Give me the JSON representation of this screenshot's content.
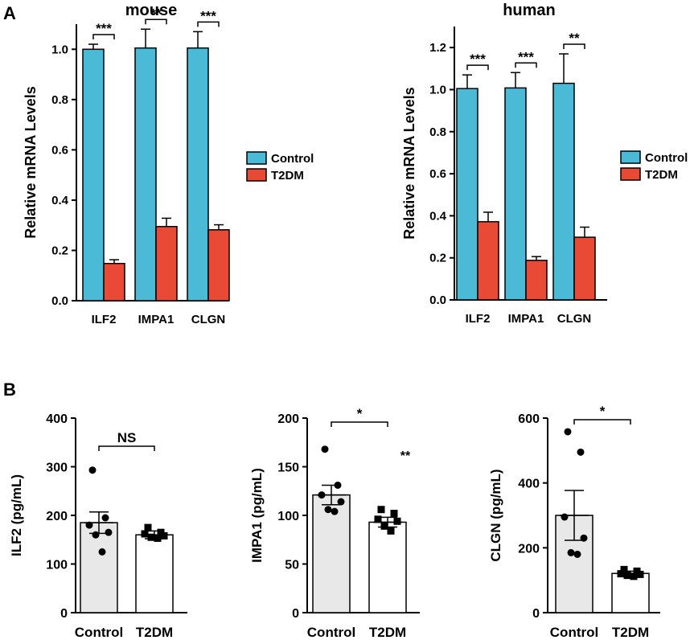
{
  "panel_labels": [
    "A",
    "B"
  ],
  "colors": {
    "control": "#4bbad6",
    "t2dm": "#e84a36",
    "ctrl_bar": "#e8e8e8",
    "t2dm_bar": "#ffffff",
    "ink": "#000000"
  },
  "chart_data": [
    {
      "id": "mouse",
      "type": "bar",
      "title": "mouse",
      "ylabel": "Relative mRNA Levels",
      "xlabel": "",
      "categories": [
        "ILF2",
        "IMPA1",
        "CLGN"
      ],
      "ylim": [
        0,
        1.1
      ],
      "yticks": [
        "0.0",
        "0.2",
        "0.4",
        "0.6",
        "0.8",
        "1.0"
      ],
      "series": [
        {
          "name": "Control",
          "values": [
            1.0,
            1.005,
            1.005
          ],
          "errors": [
            0.02,
            0.075,
            0.065
          ]
        },
        {
          "name": "T2DM",
          "values": [
            0.148,
            0.295,
            0.282
          ],
          "errors": [
            0.015,
            0.033,
            0.02
          ]
        }
      ],
      "significance": [
        "***",
        "**",
        "***"
      ],
      "legend": [
        "Control",
        "T2DM"
      ]
    },
    {
      "id": "human",
      "type": "bar",
      "title": "human",
      "ylabel": "Relative mRNA Levels",
      "xlabel": "",
      "categories": [
        "ILF2",
        "IMPA1",
        "CLGN"
      ],
      "ylim": [
        0,
        1.3
      ],
      "yticks": [
        "0.0",
        "0.2",
        "0.4",
        "0.6",
        "0.8",
        "1.0",
        "1.2"
      ],
      "series": [
        {
          "name": "Control",
          "values": [
            1.005,
            1.008,
            1.03
          ],
          "errors": [
            0.065,
            0.073,
            0.14
          ]
        },
        {
          "name": "T2DM",
          "values": [
            0.372,
            0.188,
            0.298
          ],
          "errors": [
            0.045,
            0.018,
            0.048
          ]
        }
      ],
      "significance": [
        "***",
        "***",
        "**"
      ],
      "legend": [
        "Control",
        "T2DM"
      ]
    },
    {
      "id": "ilf2",
      "type": "bar",
      "ylabel": "ILF2 (pg/mL)",
      "categories": [
        "Control",
        "T2DM"
      ],
      "ylim": [
        0,
        400
      ],
      "yticks": [
        "0",
        "100",
        "200",
        "300",
        "400"
      ],
      "values": [
        185,
        160
      ],
      "errors": [
        22,
        8
      ],
      "points": [
        [
          293,
          195,
          180,
          165,
          160,
          125
        ],
        [
          175,
          165,
          162,
          158,
          155,
          153
        ]
      ],
      "comparison": "NS",
      "extra_annotation": ""
    },
    {
      "id": "impa1",
      "type": "bar",
      "ylabel": "IMPA1 (pg/mL)",
      "categories": [
        "Control",
        "T2DM"
      ],
      "ylim": [
        0,
        200
      ],
      "yticks": [
        "0",
        "50",
        "100",
        "150",
        "200"
      ],
      "values": [
        121,
        93
      ],
      "errors": [
        10,
        5
      ],
      "points": [
        [
          168,
          131,
          121,
          114,
          106,
          104
        ],
        [
          106,
          102,
          96,
          94,
          89,
          84
        ]
      ],
      "comparison": "*",
      "extra_annotation": "**"
    },
    {
      "id": "clgn",
      "type": "bar",
      "ylabel": "CLGN (pg/mL)",
      "categories": [
        "Control",
        "T2DM"
      ],
      "ylim": [
        0,
        600
      ],
      "yticks": [
        "0",
        "200",
        "400",
        "600"
      ],
      "values": [
        300,
        121
      ],
      "errors": [
        77,
        7
      ],
      "points": [
        [
          558,
          495,
          295,
          230,
          185,
          180
        ],
        [
          133,
          128,
          120,
          118,
          115,
          112
        ]
      ],
      "comparison": "*",
      "extra_annotation": ""
    }
  ]
}
